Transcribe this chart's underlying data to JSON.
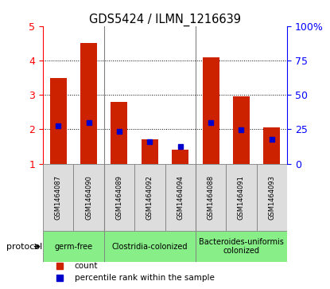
{
  "title": "GDS5424 / ILMN_1216639",
  "samples": [
    "GSM1464087",
    "GSM1464090",
    "GSM1464089",
    "GSM1464092",
    "GSM1464094",
    "GSM1464088",
    "GSM1464091",
    "GSM1464093"
  ],
  "bar_values": [
    3.5,
    4.5,
    2.8,
    1.7,
    1.4,
    4.1,
    2.95,
    2.05
  ],
  "percentile_values": [
    2.1,
    2.2,
    1.95,
    1.65,
    1.5,
    2.2,
    1.98,
    1.72
  ],
  "ylim": [
    1,
    5
  ],
  "left_yticks": [
    1,
    2,
    3,
    4,
    5
  ],
  "right_yticks": [
    0,
    25,
    50,
    75,
    100
  ],
  "right_yticklabels": [
    "0",
    "25",
    "50",
    "75",
    "100%"
  ],
  "bar_color": "#cc2200",
  "percentile_color": "#0000cc",
  "sample_box_color": "#dddddd",
  "group_configs": [
    {
      "start": 0,
      "end": 1,
      "label": "germ-free"
    },
    {
      "start": 2,
      "end": 4,
      "label": "Clostridia-colonized"
    },
    {
      "start": 5,
      "end": 7,
      "label": "Bacteroides-uniformis\ncolonized"
    }
  ],
  "group_color": "#88ee88",
  "protocol_label": "protocol",
  "legend_items": [
    {
      "label": "count",
      "color": "#cc2200",
      "marker": "s"
    },
    {
      "label": "percentile rank within the sample",
      "color": "#0000cc",
      "marker": "s"
    }
  ],
  "grid_dotted_at": [
    2,
    3,
    4
  ],
  "group_dividers": [
    1.5,
    4.5
  ]
}
